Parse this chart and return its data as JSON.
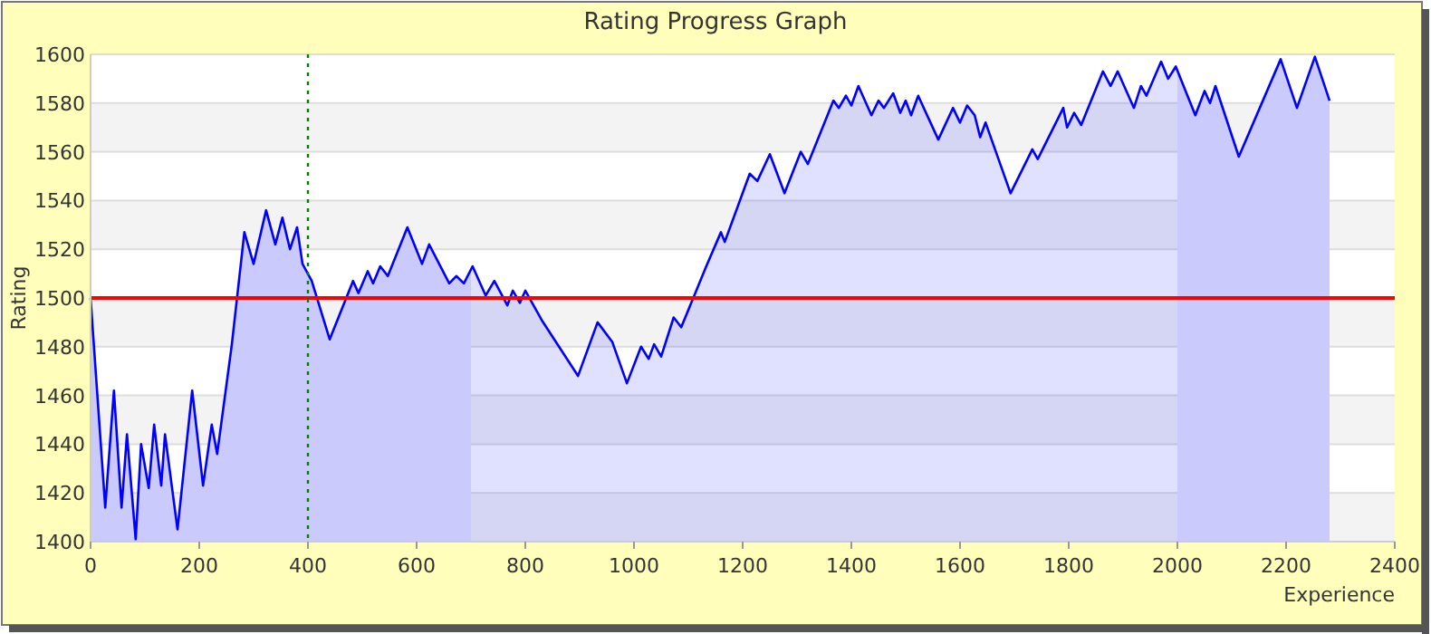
{
  "chart_data": {
    "type": "area",
    "title": "Rating Progress Graph",
    "xlabel": "Experience",
    "ylabel": "Rating",
    "xlim": [
      0,
      2400
    ],
    "xticks": [
      0,
      200,
      400,
      600,
      800,
      1000,
      1200,
      1400,
      1600,
      1800,
      2000,
      2200,
      2400
    ],
    "ylim": [
      1400,
      1600
    ],
    "yticks": [
      1400,
      1420,
      1440,
      1460,
      1480,
      1500,
      1520,
      1540,
      1560,
      1580,
      1600
    ],
    "grid": "y",
    "series": [
      {
        "color": "#0000ff",
        "x": [
          0,
          27,
          43,
          57,
          67,
          83,
          93,
          107,
          117,
          130,
          137,
          160,
          187,
          207,
          223,
          233,
          260,
          283,
          300,
          323,
          340,
          353,
          367,
          380,
          390,
          407,
          440,
          483,
          493,
          510,
          520,
          533,
          547,
          583,
          610,
          623,
          660,
          673,
          687,
          703,
          727,
          743,
          767,
          777,
          790,
          800,
          830,
          897,
          933,
          960,
          987,
          1013,
          1027,
          1037,
          1050,
          1073,
          1087,
          1133,
          1160,
          1167,
          1213,
          1227,
          1250,
          1277,
          1307,
          1320,
          1367,
          1377,
          1390,
          1400,
          1413,
          1437,
          1450,
          1460,
          1477,
          1490,
          1500,
          1510,
          1523,
          1560,
          1587,
          1600,
          1613,
          1627,
          1637,
          1647,
          1693,
          1733,
          1743,
          1790,
          1797,
          1810,
          1823,
          1863,
          1877,
          1890,
          1920,
          1933,
          1943,
          1970,
          1983,
          1997,
          2033,
          2050,
          2060,
          2070,
          2113,
          2190,
          2220,
          2253,
          2280
        ],
        "values": [
          1500,
          1414,
          1462,
          1414,
          1444,
          1401,
          1440,
          1422,
          1448,
          1423,
          1444,
          1405,
          1462,
          1423,
          1448,
          1436,
          1481,
          1527,
          1514,
          1536,
          1522,
          1533,
          1520,
          1529,
          1514,
          1507,
          1483,
          1507,
          1502,
          1511,
          1506,
          1513,
          1509,
          1529,
          1514,
          1522,
          1506,
          1509,
          1506,
          1513,
          1501,
          1507,
          1497,
          1503,
          1498,
          1503,
          1491,
          1468,
          1490,
          1482,
          1465,
          1480,
          1475,
          1481,
          1476,
          1492,
          1488,
          1513,
          1527,
          1523,
          1551,
          1548,
          1559,
          1543,
          1560,
          1555,
          1581,
          1578,
          1583,
          1579,
          1587,
          1575,
          1581,
          1578,
          1584,
          1576,
          1581,
          1575,
          1583,
          1565,
          1578,
          1572,
          1579,
          1575,
          1566,
          1572,
          1543,
          1561,
          1557,
          1578,
          1570,
          1576,
          1571,
          1593,
          1587,
          1593,
          1578,
          1587,
          1583,
          1597,
          1590,
          1595,
          1575,
          1585,
          1580,
          1587,
          1558,
          1598,
          1578,
          1599,
          1581
        ]
      }
    ],
    "bands": [
      {
        "axis": "x",
        "from": 0,
        "to": 700,
        "color": "#e6e6fd"
      },
      {
        "axis": "x",
        "from": 2000,
        "to": 2280,
        "color": "#e6e6fd"
      }
    ],
    "ref_lines": [
      {
        "axis": "y",
        "value": 1500,
        "color": "#ff0000",
        "line_style": "solid"
      },
      {
        "axis": "x",
        "value": 400,
        "color": "#008000",
        "line_style": "dotted"
      }
    ]
  }
}
